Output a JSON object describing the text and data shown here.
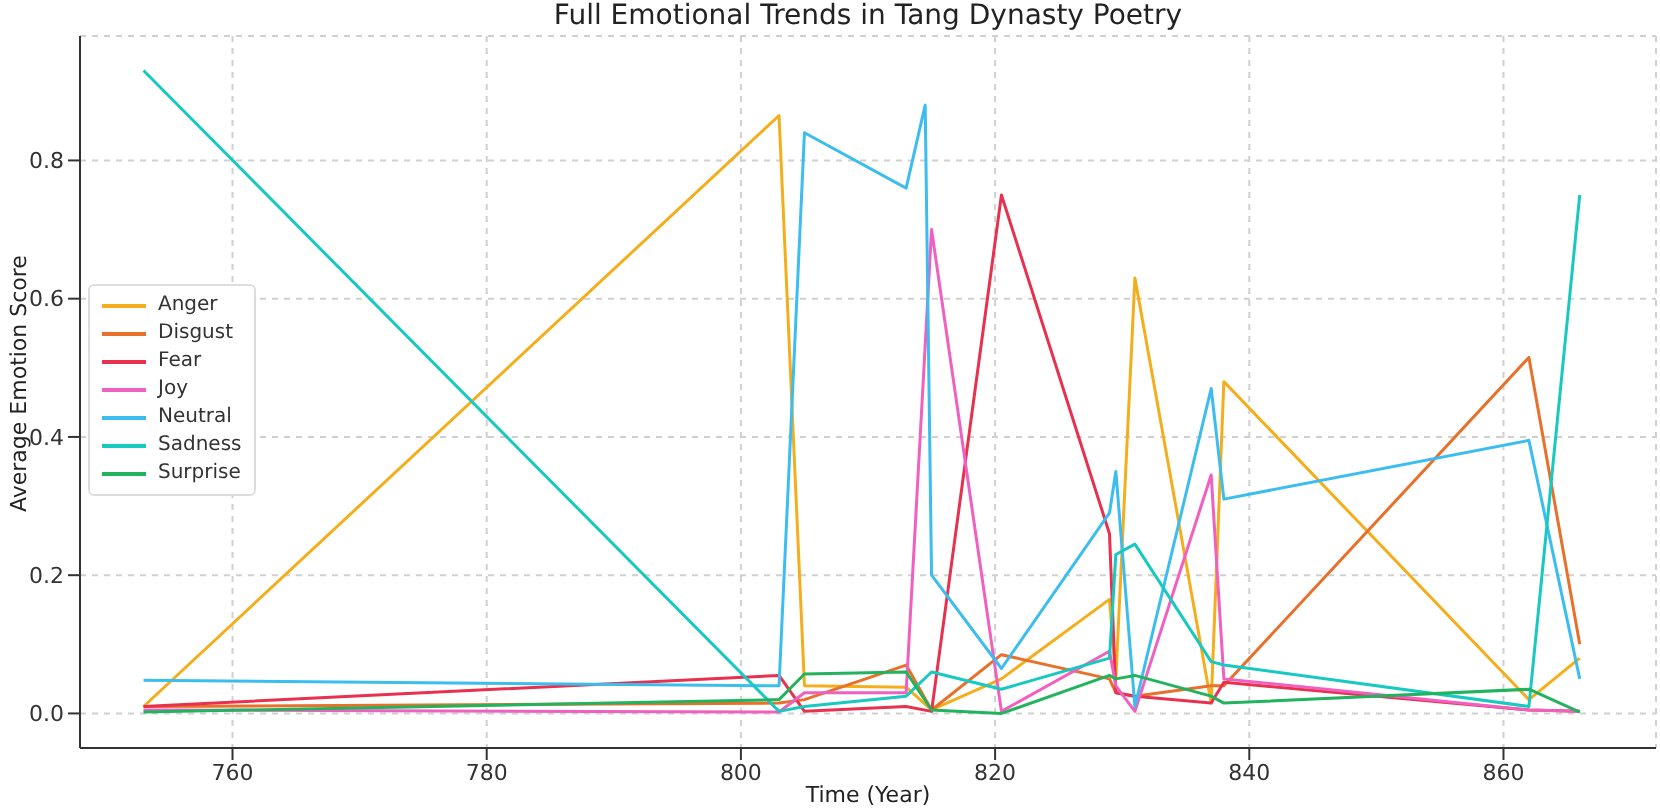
{
  "chart_data": {
    "type": "line",
    "title": "Full Emotional Trends in Tang Dynasty Poetry",
    "xlabel": "Time (Year)",
    "ylabel": "Average Emotion Score",
    "x": [
      753,
      803,
      805,
      813,
      815,
      820.5,
      829,
      829.5,
      831,
      837,
      838,
      862,
      866
    ],
    "xlim": [
      748,
      872
    ],
    "xticks": [
      760,
      780,
      800,
      820,
      840,
      860
    ],
    "ylim": [
      -0.05,
      0.98
    ],
    "yticks": [
      {
        "value": 0,
        "label": "0.0"
      },
      {
        "value": 0.2,
        "label": "0.2"
      },
      {
        "value": 0.4,
        "label": "0.4"
      },
      {
        "value": 0.6,
        "label": "0.6"
      },
      {
        "value": 0.8,
        "label": "0.8"
      }
    ],
    "grid": true,
    "legend": "left",
    "marker": "none",
    "line_style": "solid",
    "series": [
      {
        "name": "Anger",
        "color": "#f5ae1b",
        "values": [
          0.01,
          0.865,
          0.04,
          0.038,
          0.005,
          0.05,
          0.165,
          0.05,
          0.63,
          0.015,
          0.48,
          0.02,
          0.08
        ]
      },
      {
        "name": "Disgust",
        "color": "#e8702a",
        "values": [
          0.01,
          0.015,
          0.02,
          0.07,
          0.005,
          0.085,
          0.05,
          0.03,
          0.025,
          0.04,
          0.04,
          0.515,
          0.1
        ]
      },
      {
        "name": "Fear",
        "color": "#e8304f",
        "values": [
          0.01,
          0.055,
          0.003,
          0.01,
          0.003,
          0.75,
          0.26,
          0.03,
          0.025,
          0.015,
          0.045,
          0.005,
          0.003
        ]
      },
      {
        "name": "Joy",
        "color": "#f060c0",
        "values": [
          0.005,
          0.002,
          0.03,
          0.03,
          0.7,
          0.003,
          0.09,
          0.04,
          0.003,
          0.345,
          0.05,
          0.005,
          0.003
        ]
      },
      {
        "name": "Neutral",
        "color": "#3cbdf0",
        "x": [
          753,
          803,
          805,
          813,
          814.5,
          815,
          820.5,
          829,
          829.5,
          831,
          837,
          838,
          862,
          866
        ],
        "values": [
          0.048,
          0.04,
          0.84,
          0.76,
          0.88,
          0.2,
          0.065,
          0.29,
          0.35,
          0.01,
          0.47,
          0.31,
          0.395,
          0.05
        ]
      },
      {
        "name": "Sadness",
        "color": "#17c9c0",
        "values": [
          0.93,
          0.003,
          0.01,
          0.025,
          0.06,
          0.035,
          0.08,
          0.23,
          0.245,
          0.075,
          0.07,
          0.01,
          0.75
        ]
      },
      {
        "name": "Surprise",
        "color": "#22b35e",
        "values": [
          0.002,
          0.02,
          0.057,
          0.06,
          0.005,
          0,
          0.055,
          0.05,
          0.055,
          0.025,
          0.015,
          0.035,
          0.002
        ]
      }
    ]
  }
}
